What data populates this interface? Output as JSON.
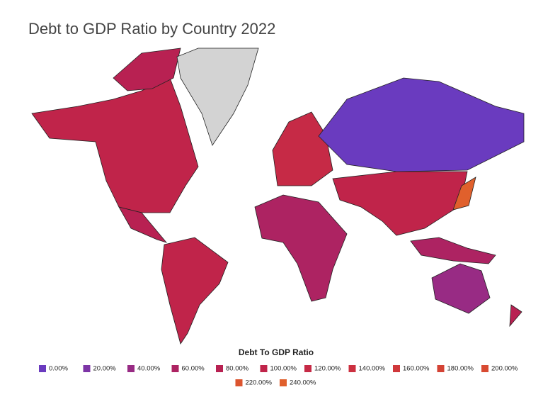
{
  "title": "Debt to GDP Ratio by Country 2022",
  "legend": {
    "title": "Debt To GDP Ratio",
    "items": [
      {
        "value": 0,
        "label": "0.00%",
        "color": "#6a3bbf"
      },
      {
        "value": 20,
        "label": "20.00%",
        "color": "#7d35a6"
      },
      {
        "value": 40,
        "label": "40.00%",
        "color": "#982b84"
      },
      {
        "value": 60,
        "label": "60.00%",
        "color": "#ad2362"
      },
      {
        "value": 80,
        "label": "80.00%",
        "color": "#b82152"
      },
      {
        "value": 100,
        "label": "100.00%",
        "color": "#c0244a"
      },
      {
        "value": 120,
        "label": "120.00%",
        "color": "#c62a46"
      },
      {
        "value": 140,
        "label": "140.00%",
        "color": "#cc3040"
      },
      {
        "value": 160,
        "label": "160.00%",
        "color": "#d0383b"
      },
      {
        "value": 180,
        "label": "180.00%",
        "color": "#d44335"
      },
      {
        "value": 200,
        "label": "200.00%",
        "color": "#d84a32"
      },
      {
        "value": 220,
        "label": "220.00%",
        "color": "#dc552f"
      },
      {
        "value": 240,
        "label": "240.00%",
        "color": "#e0602c"
      }
    ]
  }
}
